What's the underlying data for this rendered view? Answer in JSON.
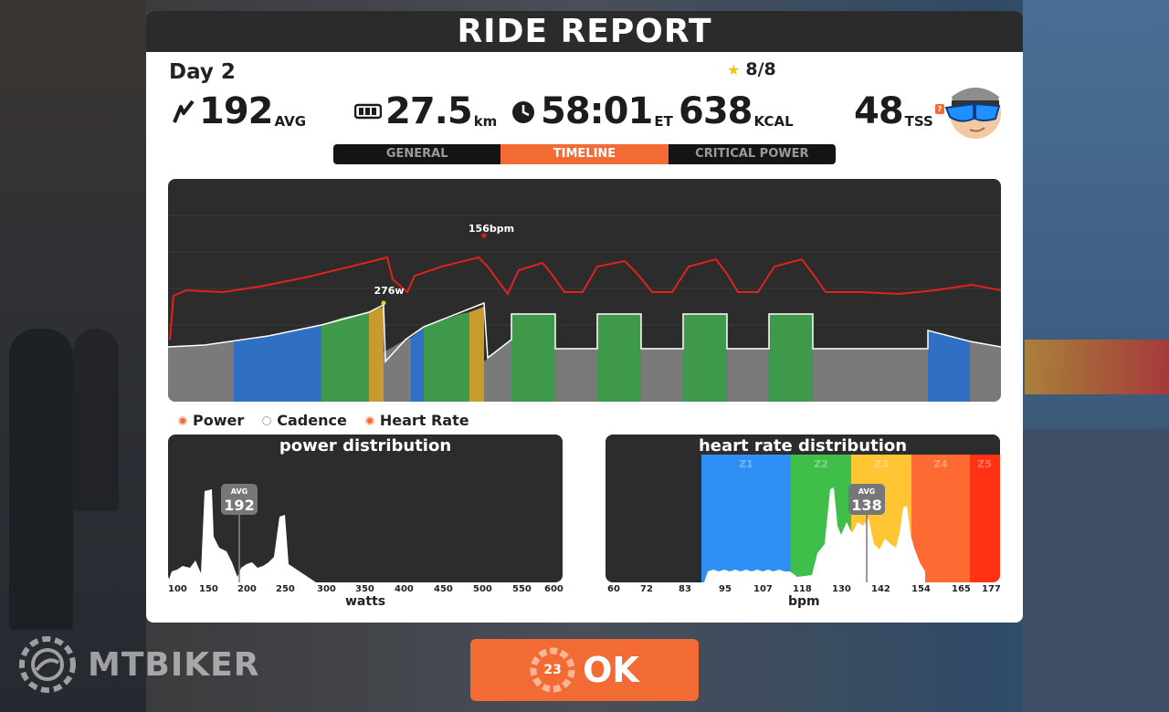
{
  "title": "RIDE REPORT",
  "ride": {
    "name": "Day 2",
    "stars": "8/8"
  },
  "stats": {
    "power": {
      "value": "192",
      "unit": "AVG"
    },
    "distance": {
      "value": "27.5",
      "unit": "km"
    },
    "time": {
      "value": "58:01",
      "unit": "ET"
    },
    "calories": {
      "value": "638",
      "unit": "KCAL"
    },
    "tss": {
      "value": "48",
      "unit": "TSS",
      "help": "?"
    }
  },
  "tabs": [
    {
      "label": "GENERAL",
      "active": false
    },
    {
      "label": "TIMELINE",
      "active": true
    },
    {
      "label": "CRITICAL POWER",
      "active": false
    }
  ],
  "timeline": {
    "hr_peak_label": "156bpm",
    "power_peak_label": "276w",
    "colors": {
      "hr": "#e0221e",
      "power_line": "#ffffff",
      "z1": "#7a7a7a",
      "z2": "#2f6fc4",
      "z3": "#3e9a4a",
      "z4": "#c99a2e"
    }
  },
  "legend": [
    {
      "label": "Power",
      "checked": true
    },
    {
      "label": "Cadence",
      "checked": false
    },
    {
      "label": "Heart Rate",
      "checked": true
    }
  ],
  "power_distribution": {
    "title": "power distribution",
    "avg_label": "AVG",
    "avg_value": "192",
    "ticks": [
      "100",
      "150",
      "200",
      "250",
      "300",
      "350",
      "400",
      "450",
      "500",
      "550",
      "600"
    ],
    "axis_title": "watts"
  },
  "hr_distribution": {
    "title": "heart rate distribution",
    "avg_label": "AVG",
    "avg_value": "138",
    "zones": [
      "Z1",
      "Z2",
      "Z3",
      "Z4",
      "Z5"
    ],
    "ticks": [
      "60",
      "72",
      "83",
      "95",
      "107",
      "118",
      "130",
      "142",
      "154",
      "165",
      "177"
    ],
    "axis_title": "bpm",
    "zone_colors": [
      "#2f8ff5",
      "#3fbf4a",
      "#ffc533",
      "#ff6a33",
      "#ff3314"
    ]
  },
  "ok_button": {
    "label": "OK",
    "countdown": "23"
  },
  "watermark": "MTBIKER"
}
